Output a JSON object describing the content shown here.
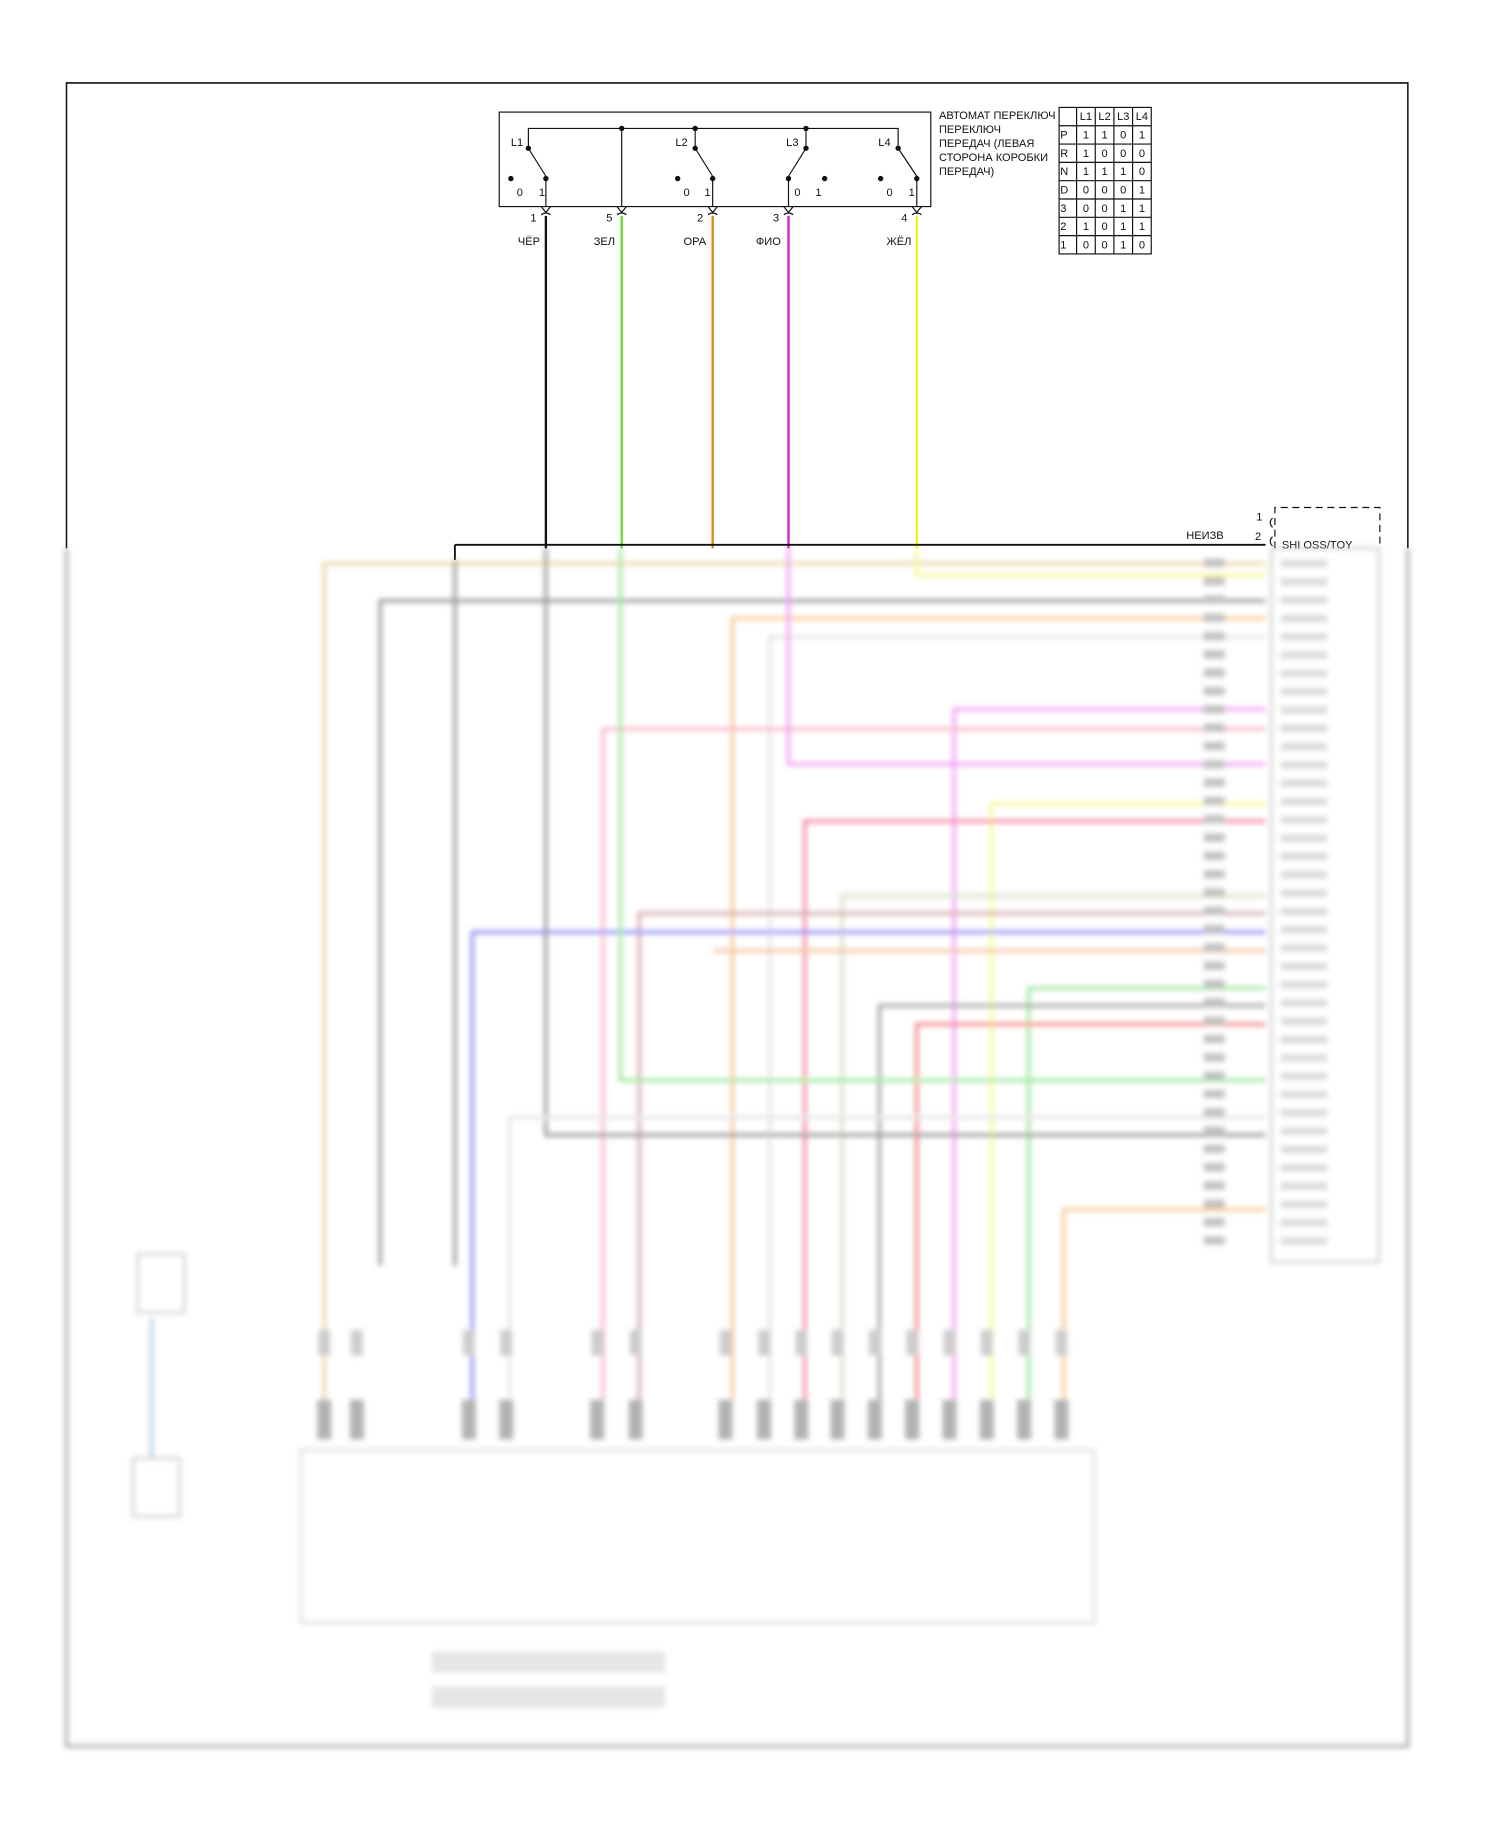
{
  "component": {
    "title_lines": [
      "АВТОМАТ ПЕРЕКЛЮЧ",
      "ПЕРЕКЛЮЧ",
      "ПЕРЕДАЧ (ЛЕВАЯ",
      "СТОРОНА КОРОБКИ",
      "ПЕРЕДАЧ)"
    ],
    "switches": [
      "L1",
      "L2",
      "L3",
      "L4"
    ],
    "switch_positions": [
      "0",
      "1"
    ]
  },
  "pins": [
    {
      "number": "1",
      "wire": "ЧЁР",
      "color": "#111111"
    },
    {
      "number": "5",
      "wire": "ЗЕЛ",
      "color": "#66dd22"
    },
    {
      "number": "2",
      "wire": "ОРА",
      "color": "#d98a1a"
    },
    {
      "number": "3",
      "wire": "ФИО",
      "color": "#cc22cc"
    },
    {
      "number": "4",
      "wire": "ЖЁЛ",
      "color": "#f2f21a"
    }
  ],
  "truth_table": {
    "headers": [
      "",
      "L1",
      "L2",
      "L3",
      "L4"
    ],
    "rows": [
      [
        "P",
        "1",
        "1",
        "0",
        "1"
      ],
      [
        "R",
        "1",
        "0",
        "0",
        "0"
      ],
      [
        "N",
        "1",
        "1",
        "1",
        "0"
      ],
      [
        "D",
        "0",
        "0",
        "0",
        "1"
      ],
      [
        "3",
        "0",
        "0",
        "1",
        "1"
      ],
      [
        "2",
        "1",
        "0",
        "1",
        "1"
      ],
      [
        "1",
        "0",
        "0",
        "1",
        "0"
      ]
    ]
  },
  "connector": {
    "unknown_label": "НЕИЗВ",
    "pin1": "1",
    "pin2": "2",
    "module_label": "SHI OSS/TOY"
  },
  "lower_wire_colors": [
    "#e8c88a",
    "#777777",
    "#f5b870",
    "#dddddd",
    "#f080f0",
    "#f4a0b0",
    "#f5f57a",
    "#f06080",
    "#c8d8b0",
    "#c89090",
    "#7070f0",
    "#f0b080",
    "#80e080",
    "#888888",
    "#f06060",
    "#a0c0e0"
  ]
}
